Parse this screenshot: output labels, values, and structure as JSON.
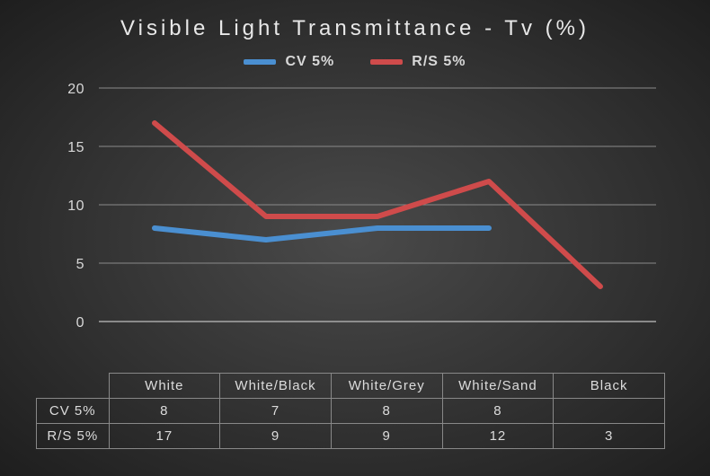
{
  "chart": {
    "type": "line",
    "title": "Visible Light Transmittance - Tv (%)",
    "title_fontsize": 24,
    "title_color": "#e8e8e8",
    "background": "radial-gradient",
    "bg_center": "#4a4a4a",
    "bg_edge": "#1e1e1e",
    "grid_color": "#8a8a8a",
    "baseline_color": "#a8a8a8",
    "text_color": "#d8d8d8",
    "line_width": 6,
    "ylim": [
      0,
      20
    ],
    "ytick_step": 5,
    "yticks": [
      0,
      5,
      10,
      15,
      20
    ],
    "categories": [
      "White",
      "White/Black",
      "White/Grey",
      "White/Sand",
      "Black"
    ],
    "legend": {
      "items": [
        {
          "label": "CV 5%",
          "color": "#4a8fd1"
        },
        {
          "label": "R/S 5%",
          "color": "#cf4b4b"
        }
      ]
    },
    "series": [
      {
        "name": "CV 5%",
        "color": "#4a8fd1",
        "values": [
          8,
          7,
          8,
          8,
          null
        ]
      },
      {
        "name": "R/S 5%",
        "color": "#cf4b4b",
        "values": [
          17,
          9,
          9,
          12,
          3
        ]
      }
    ],
    "axis_label_fontsize": 16
  },
  "table": {
    "columns": [
      "White",
      "White/Black",
      "White/Grey",
      "White/Sand",
      "Black"
    ],
    "rows": [
      {
        "head": "CV 5%",
        "cells": [
          "8",
          "7",
          "8",
          "8",
          ""
        ]
      },
      {
        "head": "R/S 5%",
        "cells": [
          "17",
          "9",
          "9",
          "12",
          "3"
        ]
      }
    ],
    "border_color": "#888888",
    "cell_fontsize": 15
  }
}
